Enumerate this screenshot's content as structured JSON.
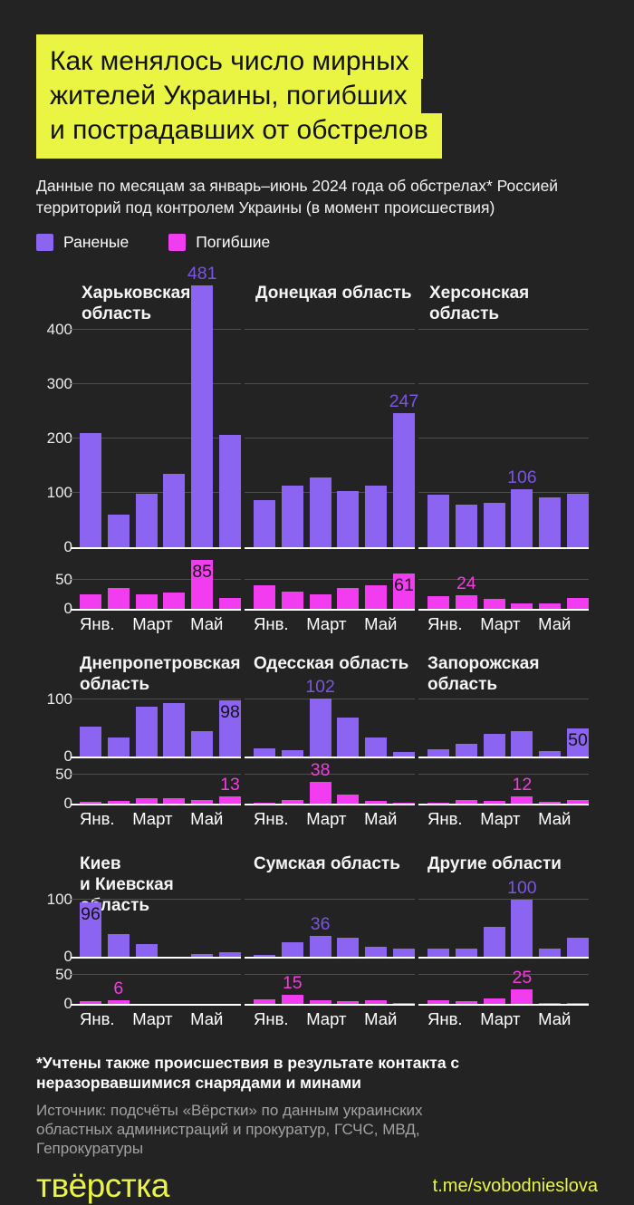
{
  "header": {
    "title_lines": [
      "Как менялось число мирных",
      "жителей Украины, погибших",
      "и пострадавших от обстрелов"
    ],
    "subtitle": "Данные по месяцам за январь–июнь 2024 года об обстрелах* Россией территорий под контролем Украины (в момент происшествия)",
    "highlight_color": "#e9f542"
  },
  "legend": {
    "items": [
      {
        "label": "Раненые",
        "color": "#8c64f2",
        "series": "wounded"
      },
      {
        "label": "Погибшие",
        "color": "#f23cf0",
        "series": "killed"
      }
    ]
  },
  "chart_data": {
    "type": "bar",
    "months_span": "январь–июнь 2024",
    "x_tick_labels": [
      "Янв.",
      "Март",
      "Май"
    ],
    "series_names": {
      "wounded": "Раненые",
      "killed": "Погибшие"
    },
    "colors": {
      "wounded": "#8c64f2",
      "killed": "#f23cf0",
      "wounded_label": "#7b54e4",
      "killed_label": "#f23ce0",
      "gridline": "#4e4e4e",
      "baseline": "#ffffff"
    },
    "panels": [
      {
        "title_lines": [
          "Харьковская",
          "область"
        ],
        "row": 0,
        "wounded": {
          "values": [
            210,
            60,
            98,
            135,
            481,
            207
          ],
          "ticks": [
            0,
            100,
            200,
            300,
            400
          ],
          "label": {
            "index": 4,
            "text": "481",
            "placement": "above"
          }
        },
        "killed": {
          "values": [
            26,
            36,
            25,
            29,
            85,
            19
          ],
          "ticks": [
            0,
            50
          ],
          "label": {
            "index": 4,
            "text": "85",
            "placement": "inside"
          }
        }
      },
      {
        "title_lines": [
          "Донецкая область"
        ],
        "row": 0,
        "wounded": {
          "values": [
            87,
            113,
            128,
            103,
            113,
            247
          ],
          "ticks": [
            0,
            100,
            200,
            300,
            400
          ],
          "label": {
            "index": 5,
            "text": "247",
            "placement": "above"
          }
        },
        "killed": {
          "values": [
            41,
            30,
            26,
            37,
            41,
            61
          ],
          "ticks": [
            0,
            50
          ],
          "label": {
            "index": 5,
            "text": "61",
            "placement": "inside"
          }
        }
      },
      {
        "title_lines": [
          "Херсонская область"
        ],
        "row": 0,
        "wounded": {
          "values": [
            96,
            78,
            81,
            106,
            92,
            98
          ],
          "ticks": [
            0,
            100,
            200,
            300,
            400
          ],
          "label": {
            "index": 3,
            "text": "106",
            "placement": "above"
          }
        },
        "killed": {
          "values": [
            22,
            24,
            18,
            9,
            10,
            19
          ],
          "ticks": [
            0,
            50
          ],
          "label": {
            "index": 1,
            "text": "24",
            "placement": "above"
          }
        }
      },
      {
        "title_lines": [
          "Днепропетровская",
          "область"
        ],
        "row": 1,
        "wounded": {
          "values": [
            52,
            33,
            88,
            94,
            44,
            98
          ],
          "ticks": [
            0,
            100
          ],
          "label": {
            "index": 5,
            "text": "98",
            "placement": "inside"
          }
        },
        "killed": {
          "values": [
            3,
            4,
            9,
            9,
            7,
            13
          ],
          "ticks": [
            0,
            50
          ],
          "label": {
            "index": 5,
            "text": "13",
            "placement": "above"
          }
        }
      },
      {
        "title_lines": [
          "Одесская область"
        ],
        "row": 1,
        "wounded": {
          "values": [
            15,
            11,
            102,
            68,
            33,
            8
          ],
          "ticks": [
            0,
            100
          ],
          "label": {
            "index": 2,
            "text": "102",
            "placement": "above"
          }
        },
        "killed": {
          "values": [
            2,
            6,
            38,
            15,
            4,
            1
          ],
          "ticks": [
            0,
            50
          ],
          "label": {
            "index": 2,
            "text": "38",
            "placement": "above"
          }
        }
      },
      {
        "title_lines": [
          "Запорожская",
          "область"
        ],
        "row": 1,
        "wounded": {
          "values": [
            12,
            22,
            39,
            45,
            9,
            50
          ],
          "ticks": [
            0,
            100
          ],
          "label": {
            "index": 5,
            "text": "50",
            "placement": "inside"
          }
        },
        "killed": {
          "values": [
            2,
            7,
            4,
            12,
            3,
            7
          ],
          "ticks": [
            0,
            50
          ],
          "label": {
            "index": 3,
            "text": "12",
            "placement": "above"
          }
        }
      },
      {
        "title_lines": [
          "Киев",
          "и Киевская область"
        ],
        "row": 2,
        "wounded": {
          "values": [
            96,
            39,
            23,
            0,
            4,
            8
          ],
          "ticks": [
            0,
            100
          ],
          "label": {
            "index": 0,
            "text": "96",
            "placement": "inside"
          }
        },
        "killed": {
          "values": [
            4,
            6,
            0,
            0,
            0,
            0
          ],
          "ticks": [
            0,
            50
          ],
          "label": {
            "index": 1,
            "text": "6",
            "placement": "above"
          }
        }
      },
      {
        "title_lines": [
          "Сумская область"
        ],
        "row": 2,
        "wounded": {
          "values": [
            3,
            26,
            36,
            33,
            18,
            14
          ],
          "ticks": [
            0,
            100
          ],
          "label": {
            "index": 2,
            "text": "36",
            "placement": "above"
          }
        },
        "killed": {
          "values": [
            8,
            15,
            6,
            5,
            7,
            2
          ],
          "ticks": [
            0,
            50
          ],
          "label": {
            "index": 1,
            "text": "15",
            "placement": "above"
          }
        }
      },
      {
        "title_lines": [
          "Другие области"
        ],
        "row": 2,
        "wounded": {
          "values": [
            14,
            14,
            53,
            100,
            14,
            33
          ],
          "ticks": [
            0,
            100
          ],
          "label": {
            "index": 3,
            "text": "100",
            "placement": "above"
          }
        },
        "killed": {
          "values": [
            6,
            4,
            9,
            25,
            2,
            2
          ],
          "ticks": [
            0,
            50
          ],
          "label": {
            "index": 3,
            "text": "25",
            "placement": "above"
          }
        }
      }
    ]
  },
  "footer": {
    "footnote": "*Учтены также происшествия в результате контакта с неразорвавшимися снарядами и минами",
    "source": "Источник: подсчёты «Вёрстки» по данным украинских областных администраций и прокуратур, ГСЧС, МВД, Гепрокуратуры",
    "logo": "твёрстка",
    "link": "t.me/svobodnieslova",
    "accent_color": "#e9f542"
  }
}
